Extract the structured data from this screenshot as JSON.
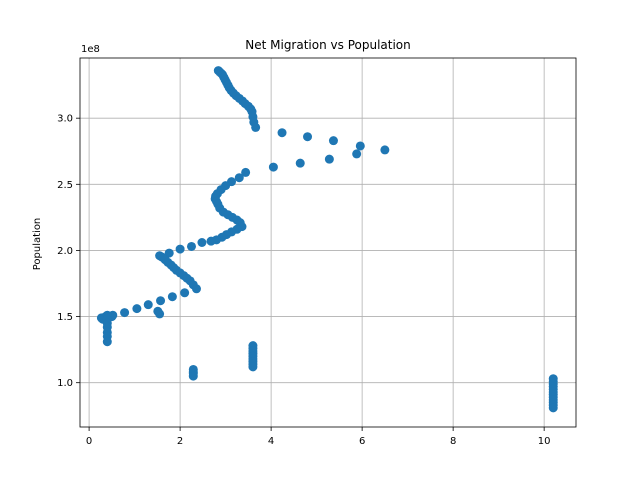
{
  "chart_data": {
    "type": "scatter",
    "title": "Net Migration vs Population",
    "xlabel": "",
    "ylabel": "Population",
    "y_offset_label": "1e8",
    "xlim": [
      -0.2,
      10.7
    ],
    "ylim": [
      0.665,
      3.455
    ],
    "x_ticks": [
      0,
      2,
      4,
      6,
      8,
      10
    ],
    "x_tick_labels": [
      "0",
      "2",
      "4",
      "6",
      "8",
      "10"
    ],
    "y_ticks": [
      1.0,
      1.5,
      2.0,
      2.5,
      3.0
    ],
    "y_tick_labels": [
      "1.0",
      "1.5",
      "2.0",
      "2.5",
      "3.0"
    ],
    "grid": true,
    "legend": "none",
    "marker_color": "#1f77b4",
    "x": [
      2.84,
      2.87,
      2.9,
      2.93,
      2.96,
      2.99,
      3.02,
      3.05,
      3.08,
      3.12,
      3.17,
      3.23,
      3.3,
      3.37,
      3.43,
      3.5,
      3.55,
      3.58,
      3.6,
      3.62,
      3.66,
      4.24,
      4.8,
      5.37,
      5.96,
      6.5,
      5.88,
      5.28,
      4.64,
      4.05,
      3.44,
      3.3,
      3.13,
      3.0,
      2.9,
      2.82,
      2.78,
      2.77,
      2.8,
      2.83,
      2.87,
      2.95,
      3.05,
      3.15,
      3.25,
      3.32,
      3.36,
      3.25,
      3.13,
      3.02,
      2.92,
      2.8,
      2.68,
      2.48,
      2.25,
      2.0,
      1.76,
      1.55,
      1.6,
      1.67,
      1.73,
      1.8,
      1.86,
      1.92,
      2.0,
      2.08,
      2.15,
      2.22,
      2.29,
      2.36,
      2.1,
      1.83,
      1.57,
      1.3,
      1.05,
      0.78,
      0.52,
      0.36,
      0.27,
      0.3,
      0.5,
      1.51,
      1.55,
      0.4,
      0.4,
      0.4,
      0.4,
      0.4,
      0.4,
      0.4,
      2.29,
      2.29,
      2.29,
      2.29,
      3.6,
      3.6,
      3.6,
      3.6,
      3.6,
      3.6,
      3.6,
      3.6,
      3.6,
      10.2,
      10.2,
      10.2,
      10.2,
      10.2,
      10.2,
      10.2,
      10.2,
      10.2,
      10.2,
      10.2,
      10.2
    ],
    "y": [
      3.36,
      3.35,
      3.34,
      3.33,
      3.31,
      3.29,
      3.27,
      3.25,
      3.23,
      3.21,
      3.19,
      3.17,
      3.15,
      3.13,
      3.11,
      3.09,
      3.07,
      3.05,
      3.01,
      2.97,
      2.93,
      2.89,
      2.86,
      2.83,
      2.79,
      2.76,
      2.73,
      2.69,
      2.66,
      2.63,
      2.59,
      2.55,
      2.52,
      2.49,
      2.46,
      2.43,
      2.41,
      2.39,
      2.37,
      2.35,
      2.32,
      2.29,
      2.27,
      2.25,
      2.23,
      2.21,
      2.18,
      2.16,
      2.14,
      2.12,
      2.1,
      2.08,
      2.07,
      2.06,
      2.03,
      2.01,
      1.98,
      1.96,
      1.95,
      1.93,
      1.91,
      1.89,
      1.87,
      1.85,
      1.83,
      1.81,
      1.79,
      1.77,
      1.74,
      1.71,
      1.68,
      1.65,
      1.62,
      1.59,
      1.56,
      1.53,
      1.51,
      1.5,
      1.49,
      1.48,
      1.5,
      1.54,
      1.52,
      1.51,
      1.48,
      1.45,
      1.42,
      1.38,
      1.35,
      1.31,
      1.1,
      1.08,
      1.07,
      1.05,
      1.28,
      1.26,
      1.24,
      1.22,
      1.2,
      1.18,
      1.16,
      1.14,
      1.12,
      1.03,
      1.01,
      0.99,
      0.97,
      0.95,
      0.93,
      0.91,
      0.89,
      0.87,
      0.85,
      0.83,
      0.81
    ]
  }
}
